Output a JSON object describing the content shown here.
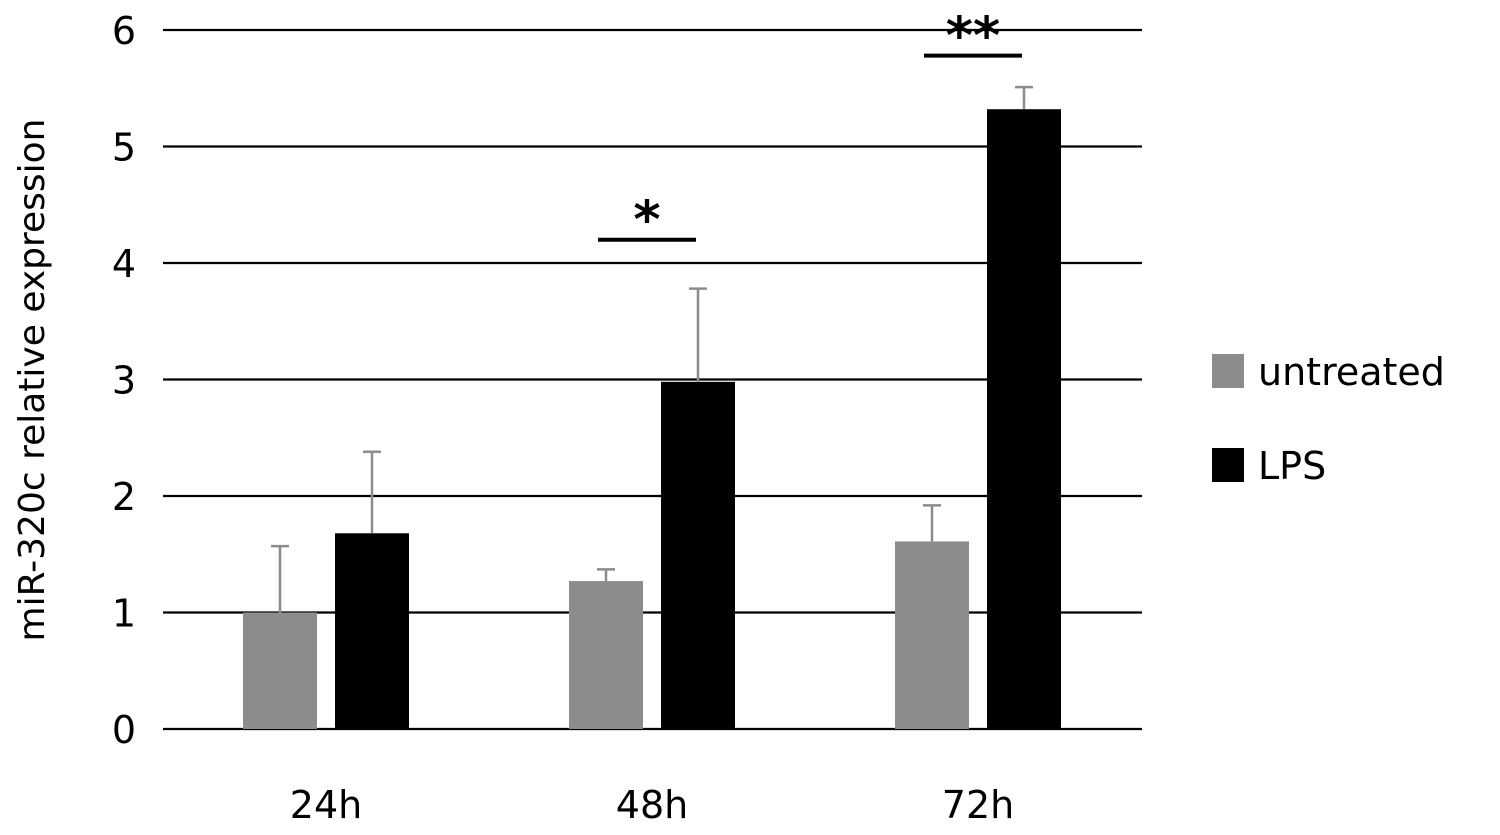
{
  "chart_data": {
    "type": "bar",
    "title": "",
    "xlabel": "",
    "ylabel": "miR-320c relative expression",
    "ylim": [
      0,
      6
    ],
    "yticks": [
      0,
      1,
      2,
      3,
      4,
      5,
      6
    ],
    "grid": true,
    "legend_position": "right",
    "categories": [
      "24h",
      "48h",
      "72h"
    ],
    "series": [
      {
        "name": "untreated",
        "color": "#8c8c8c",
        "values": [
          1.0,
          1.27,
          1.61
        ],
        "errors": [
          0.57,
          0.1,
          0.31
        ]
      },
      {
        "name": "LPS",
        "color": "#000000",
        "values": [
          1.68,
          2.98,
          5.32
        ],
        "errors": [
          0.7,
          0.8,
          0.19
        ]
      }
    ],
    "annotations": [
      {
        "category_index": 1,
        "label": "*",
        "level": 4.2
      },
      {
        "category_index": 2,
        "label": "**",
        "level": 5.78
      }
    ]
  }
}
